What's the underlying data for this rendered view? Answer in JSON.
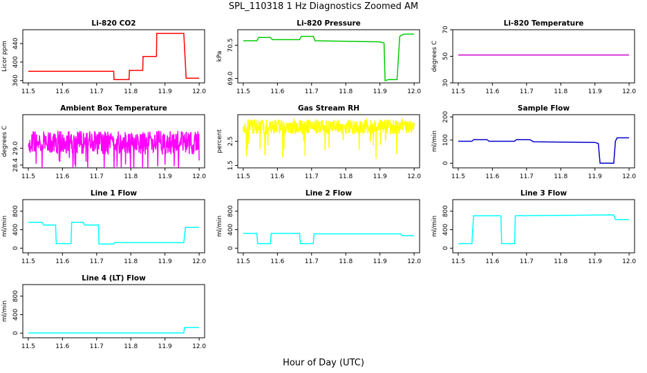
{
  "title": "SPL_110318  1 Hz Diagnostics Zoomed AM",
  "xlabel": "Hour of Day (UTC)",
  "chart_data": [
    {
      "name": "Li-820 CO2",
      "type": "line",
      "title": "Li-820 CO2",
      "ylabel": "Licor ppm",
      "color": "#ff0000",
      "xlim": [
        11.5,
        12.0
      ],
      "ylim": [
        355,
        470
      ],
      "yticks": [
        360,
        400,
        440
      ],
      "yticklabels": [
        "360",
        "400",
        "440"
      ],
      "xticks": [
        11.5,
        11.6,
        11.7,
        11.8,
        11.9,
        12.0
      ],
      "xticklabels": [
        "11.5",
        "11.6",
        "11.7",
        "11.8",
        "11.9",
        "12.0"
      ],
      "series": [
        {
          "x": [
            11.5,
            11.75,
            11.751,
            11.795,
            11.796,
            11.835,
            11.836,
            11.875,
            11.876,
            11.955,
            11.962,
            12.0
          ],
          "y": [
            380,
            380,
            362,
            362,
            382,
            382,
            412,
            412,
            462,
            462,
            365,
            365
          ]
        }
      ]
    },
    {
      "name": "Li-820 Pressure",
      "type": "line",
      "title": "Li-820 Pressure",
      "ylabel": "kPa",
      "color": "#00cc00",
      "xlim": [
        11.5,
        12.0
      ],
      "ylim": [
        68.8,
        71.2
      ],
      "yticks": [
        69.0,
        70.5
      ],
      "yticklabels": [
        "69.0",
        "70.5"
      ],
      "xticks": [
        11.5,
        11.6,
        11.7,
        11.8,
        11.9,
        12.0
      ],
      "xticklabels": [
        "11.5",
        "11.6",
        "11.7",
        "11.8",
        "11.9",
        "12.0"
      ],
      "series": [
        {
          "x": [
            11.5,
            11.54,
            11.545,
            11.58,
            11.585,
            11.665,
            11.67,
            11.705,
            11.71,
            11.9,
            11.912,
            11.915,
            11.925,
            11.95,
            11.958,
            11.97,
            12.0
          ],
          "y": [
            70.7,
            70.7,
            70.85,
            70.85,
            70.75,
            70.75,
            70.9,
            70.9,
            70.7,
            70.65,
            70.6,
            68.9,
            68.95,
            68.95,
            70.9,
            71.0,
            71.0
          ]
        }
      ]
    },
    {
      "name": "Li-820 Temperature",
      "type": "line",
      "title": "Li-820 Temperature",
      "ylabel": "degrees C",
      "color": "#cc00cc",
      "xlim": [
        11.5,
        12.0
      ],
      "ylim": [
        30,
        70
      ],
      "yticks": [
        30,
        50,
        70
      ],
      "yticklabels": [
        "30",
        "50",
        "70"
      ],
      "xticks": [
        11.5,
        11.6,
        11.7,
        11.8,
        11.9,
        12.0
      ],
      "xticklabels": [
        "11.5",
        "11.6",
        "11.7",
        "11.8",
        "11.9",
        "12.0"
      ],
      "series": [
        {
          "x": [
            11.5,
            12.0
          ],
          "y": [
            51,
            51
          ]
        }
      ]
    },
    {
      "name": "Ambient Box Temperature",
      "type": "line",
      "title": "Ambient Box Temperature",
      "ylabel": "degrees C",
      "color": "#ff00ff",
      "xlim": [
        11.5,
        12.0
      ],
      "ylim": [
        28.3,
        30.2
      ],
      "yticks": [
        28.4,
        29.0
      ],
      "yticklabels": [
        "28.4",
        "29.0"
      ],
      "xticks": [
        11.5,
        11.6,
        11.7,
        11.8,
        11.9,
        12.0
      ],
      "xticklabels": [
        "11.5",
        "11.6",
        "11.7",
        "11.8",
        "11.9",
        "12.0"
      ],
      "series": [
        {
          "x": [
            11.5,
            12.0
          ],
          "y": [
            29.2,
            29.2
          ]
        }
      ]
    },
    {
      "name": "Gas Stream RH",
      "type": "line",
      "title": "Gas Stream RH",
      "ylabel": "percent",
      "color": "#ffff00",
      "xlim": [
        11.5,
        12.0
      ],
      "ylim": [
        1.4,
        3.6
      ],
      "yticks": [
        1.5,
        2.5
      ],
      "yticklabels": [
        "1.5",
        "2.5"
      ],
      "xticks": [
        11.5,
        11.6,
        11.7,
        11.8,
        11.9,
        12.0
      ],
      "xticklabels": [
        "11.5",
        "11.6",
        "11.7",
        "11.8",
        "11.9",
        "12.0"
      ],
      "series": [
        {
          "x": [
            11.5,
            12.0
          ],
          "y": [
            3.1,
            3.1
          ]
        }
      ]
    },
    {
      "name": "Sample Flow",
      "type": "line",
      "title": "Sample Flow",
      "ylabel": "ml/min",
      "color": "#0000cc",
      "xlim": [
        11.5,
        12.0
      ],
      "ylim": [
        -20,
        210
      ],
      "yticks": [
        0,
        100,
        200
      ],
      "yticklabels": [
        "0",
        "100",
        "200"
      ],
      "xticks": [
        11.5,
        11.6,
        11.7,
        11.8,
        11.9,
        12.0
      ],
      "xticklabels": [
        "11.5",
        "11.6",
        "11.7",
        "11.8",
        "11.9",
        "12.0"
      ],
      "series": [
        {
          "x": [
            11.5,
            11.54,
            11.545,
            11.585,
            11.59,
            11.665,
            11.67,
            11.71,
            11.72,
            11.9,
            11.91,
            11.915,
            11.955,
            11.96,
            11.965,
            12.0
          ],
          "y": [
            95,
            95,
            102,
            102,
            95,
            95,
            102,
            102,
            93,
            90,
            85,
            0,
            0,
            95,
            110,
            110
          ]
        }
      ]
    },
    {
      "name": "Line 1 Flow",
      "type": "line",
      "title": "Line 1 Flow",
      "ylabel": "ml/min",
      "color": "#00ffff",
      "xlim": [
        11.5,
        12.0
      ],
      "ylim": [
        -100,
        1050
      ],
      "yticks": [
        0,
        400,
        800
      ],
      "yticklabels": [
        "0",
        "400",
        "800"
      ],
      "xticks": [
        11.5,
        11.6,
        11.7,
        11.8,
        11.9,
        12.0
      ],
      "xticklabels": [
        "11.5",
        "11.6",
        "11.7",
        "11.8",
        "11.9",
        "12.0"
      ],
      "series": [
        {
          "x": [
            11.5,
            11.54,
            11.545,
            11.58,
            11.582,
            11.625,
            11.627,
            11.66,
            11.665,
            11.705,
            11.707,
            11.75,
            11.752,
            11.955,
            11.96,
            12.0
          ],
          "y": [
            560,
            560,
            500,
            500,
            100,
            100,
            560,
            560,
            500,
            500,
            90,
            90,
            120,
            120,
            450,
            450
          ]
        }
      ]
    },
    {
      "name": "Line 2 Flow",
      "type": "line",
      "title": "Line 2 Flow",
      "ylabel": "ml/min",
      "color": "#00ffff",
      "xlim": [
        11.5,
        12.0
      ],
      "ylim": [
        -100,
        1050
      ],
      "yticks": [
        0,
        400,
        800
      ],
      "yticklabels": [
        "0",
        "400",
        "800"
      ],
      "xticks": [
        11.5,
        11.6,
        11.7,
        11.8,
        11.9,
        12.0
      ],
      "xticklabels": [
        "11.5",
        "11.6",
        "11.7",
        "11.8",
        "11.9",
        "12.0"
      ],
      "series": [
        {
          "x": [
            11.5,
            11.54,
            11.542,
            11.58,
            11.582,
            11.665,
            11.667,
            11.705,
            11.707,
            11.96,
            11.965,
            12.0
          ],
          "y": [
            320,
            320,
            100,
            100,
            320,
            320,
            100,
            100,
            310,
            310,
            270,
            270
          ]
        }
      ]
    },
    {
      "name": "Line 3 Flow",
      "type": "line",
      "title": "Line 3 Flow",
      "ylabel": "ml/min",
      "color": "#00ffff",
      "xlim": [
        11.5,
        12.0
      ],
      "ylim": [
        -100,
        1050
      ],
      "yticks": [
        0,
        400,
        800
      ],
      "yticklabels": [
        "0",
        "400",
        "800"
      ],
      "xticks": [
        11.5,
        11.6,
        11.7,
        11.8,
        11.9,
        12.0
      ],
      "xticklabels": [
        "11.5",
        "11.6",
        "11.7",
        "11.8",
        "11.9",
        "12.0"
      ],
      "series": [
        {
          "x": [
            11.5,
            11.54,
            11.545,
            11.625,
            11.627,
            11.665,
            11.667,
            11.955,
            11.96,
            12.0
          ],
          "y": [
            100,
            100,
            700,
            700,
            100,
            100,
            700,
            720,
            620,
            620
          ]
        }
      ]
    },
    {
      "name": "Line 4 (LT) Flow",
      "type": "line",
      "title": "Line 4 (LT) Flow",
      "ylabel": "ml/min",
      "color": "#00ffff",
      "xlim": [
        11.5,
        12.0
      ],
      "ylim": [
        -100,
        1050
      ],
      "yticks": [
        0,
        400,
        800
      ],
      "yticklabels": [
        "0",
        "400",
        "800"
      ],
      "xticks": [
        11.5,
        11.6,
        11.7,
        11.8,
        11.9,
        12.0
      ],
      "xticklabels": [
        "11.5",
        "11.6",
        "11.7",
        "11.8",
        "11.9",
        "12.0"
      ],
      "series": [
        {
          "x": [
            11.5,
            11.955,
            11.957,
            12.0
          ],
          "y": [
            5,
            5,
            120,
            120
          ]
        }
      ]
    }
  ]
}
